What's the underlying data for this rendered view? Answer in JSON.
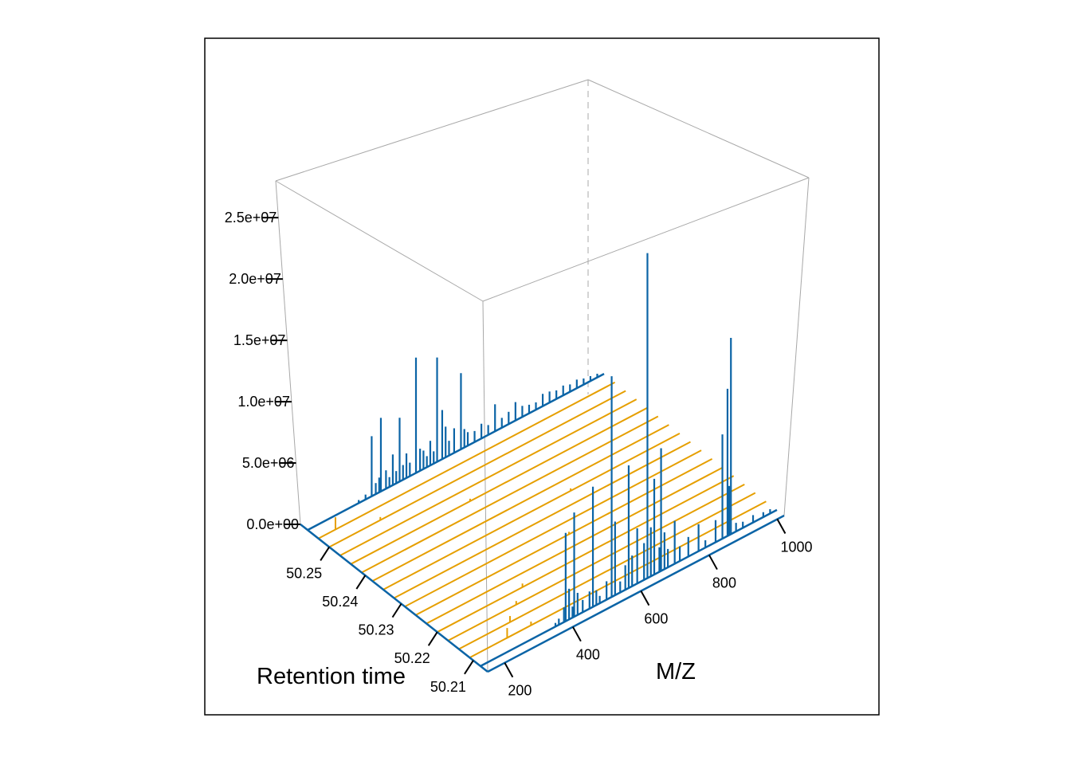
{
  "chart_data": {
    "type": "line",
    "subtype": "3d-waterfall",
    "title": "",
    "xlabel": "M/Z",
    "ylabel": "Retention time",
    "zlabel": "",
    "x_ticks": [
      200,
      400,
      600,
      800,
      1000
    ],
    "x_tick_labels": [
      "200",
      "400",
      "600",
      "800",
      "1000"
    ],
    "y_ticks": [
      50.21,
      50.22,
      50.23,
      50.24,
      50.25
    ],
    "y_tick_labels": [
      "50.21",
      "50.22",
      "50.23",
      "50.24",
      "50.25"
    ],
    "z_ticks": [
      0,
      5000000,
      10000000,
      15000000,
      20000000,
      25000000
    ],
    "z_tick_labels": [
      "0.0e+00",
      "5.0e+06",
      "1.0e+07",
      "1.5e+07",
      "2.0e+07",
      "2.5e+07"
    ],
    "xlim": [
      150,
      1020
    ],
    "ylim": [
      50.206,
      50.258
    ],
    "zlim": [
      0,
      28000000
    ],
    "colors": {
      "spectra": "#0b64a6",
      "empty_scans": "#e69f00",
      "box": "#a8a8a8",
      "frame": "#000000"
    },
    "series": [
      {
        "retention_time": 50.208,
        "color": "#0b64a6",
        "peaks": [
          [
            370,
            300000
          ],
          [
            380,
            500000
          ],
          [
            395,
            1200000
          ],
          [
            400,
            7200000
          ],
          [
            410,
            2500000
          ],
          [
            420,
            900000
          ],
          [
            425,
            8500000
          ],
          [
            435,
            1800000
          ],
          [
            450,
            1000000
          ],
          [
            470,
            1400000
          ],
          [
            480,
            9800000
          ],
          [
            490,
            1200000
          ],
          [
            500,
            600000
          ],
          [
            520,
            1500000
          ],
          [
            535,
            18000000
          ],
          [
            545,
            6000000
          ],
          [
            560,
            900000
          ],
          [
            575,
            2000000
          ],
          [
            585,
            10000000
          ],
          [
            595,
            2500000
          ],
          [
            610,
            4500000
          ],
          [
            630,
            3000000
          ],
          [
            640,
            26500000
          ],
          [
            650,
            4000000
          ],
          [
            660,
            7800000
          ],
          [
            675,
            2000000
          ],
          [
            680,
            10000000
          ],
          [
            690,
            3000000
          ],
          [
            700,
            1500000
          ],
          [
            720,
            3500000
          ],
          [
            735,
            1200000
          ],
          [
            760,
            1600000
          ],
          [
            790,
            2200000
          ],
          [
            810,
            600000
          ],
          [
            840,
            1800000
          ],
          [
            860,
            8500000
          ],
          [
            875,
            12000000
          ],
          [
            880,
            4000000
          ],
          [
            885,
            16000000
          ],
          [
            900,
            700000
          ],
          [
            920,
            500000
          ],
          [
            950,
            600000
          ],
          [
            980,
            400000
          ],
          [
            1000,
            350000
          ]
        ]
      },
      {
        "retention_time": 50.256,
        "color": "#0b64a6",
        "peaks": [
          [
            300,
            250000
          ],
          [
            320,
            400000
          ],
          [
            338,
            4900000
          ],
          [
            350,
            900000
          ],
          [
            360,
            1200000
          ],
          [
            365,
            6000000
          ],
          [
            380,
            1500000
          ],
          [
            390,
            800000
          ],
          [
            400,
            2500000
          ],
          [
            410,
            1000000
          ],
          [
            420,
            5200000
          ],
          [
            430,
            1200000
          ],
          [
            440,
            2000000
          ],
          [
            450,
            1100000
          ],
          [
            468,
            9400000
          ],
          [
            480,
            1800000
          ],
          [
            490,
            1500000
          ],
          [
            500,
            900000
          ],
          [
            510,
            2000000
          ],
          [
            520,
            1000000
          ],
          [
            530,
            8500000
          ],
          [
            545,
            4000000
          ],
          [
            555,
            2500000
          ],
          [
            565,
            1200000
          ],
          [
            580,
            2000000
          ],
          [
            600,
            6200000
          ],
          [
            610,
            1500000
          ],
          [
            620,
            1100000
          ],
          [
            640,
            900000
          ],
          [
            660,
            1200000
          ],
          [
            680,
            800000
          ],
          [
            700,
            2200000
          ],
          [
            720,
            800000
          ],
          [
            740,
            1000000
          ],
          [
            760,
            1500000
          ],
          [
            780,
            900000
          ],
          [
            800,
            700000
          ],
          [
            820,
            600000
          ],
          [
            840,
            1000000
          ],
          [
            860,
            900000
          ],
          [
            880,
            700000
          ],
          [
            900,
            800000
          ],
          [
            920,
            600000
          ],
          [
            940,
            700000
          ],
          [
            960,
            500000
          ],
          [
            980,
            400000
          ],
          [
            1000,
            300000
          ]
        ]
      }
    ],
    "empty_scans": [
      {
        "retention_time": 50.211,
        "peaks": [
          [
            260,
            800000
          ],
          [
            330,
            300000
          ]
        ]
      },
      {
        "retention_time": 50.214,
        "peaks": [
          [
            300,
            500000
          ]
        ]
      },
      {
        "retention_time": 50.217,
        "peaks": [
          [
            350,
            300000
          ]
        ]
      },
      {
        "retention_time": 50.22,
        "peaks": [
          [
            400,
            300000
          ]
        ]
      },
      {
        "retention_time": 50.223,
        "peaks": []
      },
      {
        "retention_time": 50.226,
        "peaks": [
          [
            600,
            200000
          ]
        ]
      },
      {
        "retention_time": 50.229,
        "peaks": []
      },
      {
        "retention_time": 50.232,
        "peaks": []
      },
      {
        "retention_time": 50.235,
        "peaks": [
          [
            700,
            200000
          ]
        ]
      },
      {
        "retention_time": 50.238,
        "peaks": []
      },
      {
        "retention_time": 50.241,
        "peaks": []
      },
      {
        "retention_time": 50.244,
        "peaks": [
          [
            500,
            200000
          ]
        ]
      },
      {
        "retention_time": 50.247,
        "peaks": []
      },
      {
        "retention_time": 50.25,
        "peaks": [
          [
            300,
            250000
          ]
        ]
      },
      {
        "retention_time": 50.253,
        "peaks": [
          [
            200,
            1000000
          ]
        ]
      }
    ]
  }
}
